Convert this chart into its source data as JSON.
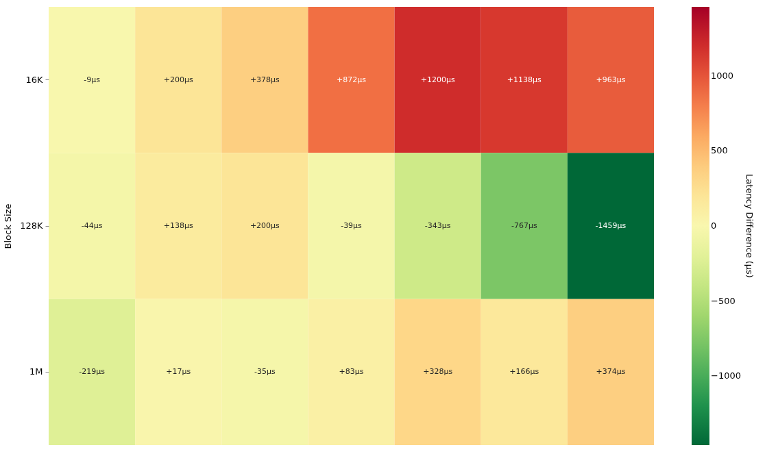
{
  "chart_data": {
    "type": "heatmap",
    "ylabel": "Block Size",
    "clabel": "Latency Difference (µs)",
    "categories": [
      null,
      null,
      null,
      null,
      null,
      null,
      null
    ],
    "y_categories": [
      "16K",
      "128K",
      "1M"
    ],
    "cells": [
      [
        -9,
        200,
        378,
        872,
        1200,
        1138,
        963
      ],
      [
        -44,
        138,
        200,
        -39,
        -343,
        -767,
        -1459
      ],
      [
        -219,
        17,
        -35,
        83,
        328,
        166,
        374
      ]
    ],
    "cell_labels": [
      [
        "-9µs",
        "+200µs",
        "+378µs",
        "+872µs",
        "+1200µs",
        "+1138µs",
        "+963µs"
      ],
      [
        "-44µs",
        "+138µs",
        "+200µs",
        "-39µs",
        "-343µs",
        "-767µs",
        "-1459µs"
      ],
      [
        "-219µs",
        "+17µs",
        "-35µs",
        "+83µs",
        "+328µs",
        "+166µs",
        "+374µs"
      ]
    ],
    "clim": [
      -1459,
      1459
    ],
    "cticks": [
      {
        "value": -1000,
        "label": "−1000"
      },
      {
        "value": -500,
        "label": "−500"
      },
      0,
      500,
      1000
    ],
    "tick_labels": "y"
  }
}
